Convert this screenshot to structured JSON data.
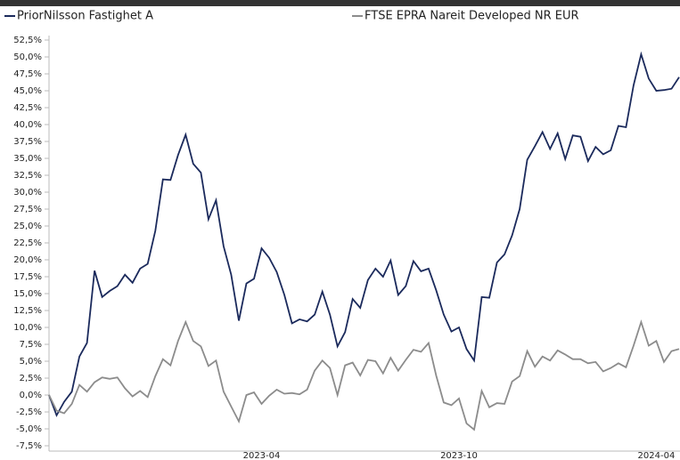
{
  "chart_data": {
    "type": "line",
    "categories": [
      null,
      null,
      null,
      null,
      null,
      null,
      null,
      null,
      null,
      null,
      null,
      null,
      null,
      null,
      null,
      null,
      null,
      null,
      null,
      null,
      null,
      null,
      null,
      null,
      null,
      null,
      null,
      null,
      "2023-04",
      null,
      null,
      null,
      null,
      null,
      null,
      null,
      null,
      null,
      null,
      null,
      null,
      null,
      null,
      null,
      null,
      null,
      null,
      null,
      null,
      null,
      null,
      null,
      null,
      null,
      "2023-10",
      null,
      null,
      null,
      null,
      null,
      null,
      null,
      null,
      null,
      null,
      null,
      null,
      null,
      null,
      null,
      null,
      null,
      null,
      null,
      null,
      null,
      null,
      null,
      null,
      null,
      "2024-04",
      null,
      null,
      null
    ],
    "series": [
      {
        "name": "PriorNilsson Fastighet A",
        "color": "#1b2a5c",
        "values": [
          0.0,
          -3.0,
          -1.0,
          0.5,
          5.7,
          7.7,
          18.4,
          14.5,
          15.4,
          16.1,
          17.8,
          16.6,
          18.7,
          19.4,
          24.3,
          31.9,
          31.8,
          35.5,
          38.5,
          34.2,
          32.9,
          26.0,
          28.8,
          22.0,
          17.8,
          11.0,
          16.5,
          17.2,
          21.7,
          20.3,
          18.2,
          14.8,
          10.6,
          11.2,
          10.9,
          11.9,
          15.3,
          11.9,
          7.2,
          9.3,
          14.2,
          12.9,
          17.0,
          18.7,
          17.5,
          19.9,
          14.8,
          16.1,
          19.8,
          18.3,
          18.7,
          15.5,
          11.9,
          9.4,
          10.0,
          6.8,
          5.1,
          14.5,
          14.4,
          19.6,
          20.8,
          23.6,
          27.5,
          34.8,
          36.8,
          38.9,
          36.4,
          38.7,
          34.9,
          38.4,
          38.2,
          34.6,
          36.7,
          35.6,
          36.2,
          39.8,
          39.6,
          45.8,
          50.4,
          46.8,
          45.0,
          45.1,
          45.3,
          47.0
        ]
      },
      {
        "name": "FTSE EPRA Nareit Developed NR EUR",
        "color": "#8c8c8c",
        "values": [
          0.0,
          -2.3,
          -2.7,
          -1.3,
          1.5,
          0.5,
          1.9,
          2.6,
          2.4,
          2.6,
          1.0,
          -0.2,
          0.6,
          -0.3,
          2.8,
          5.3,
          4.4,
          8.0,
          10.8,
          8.0,
          7.2,
          4.3,
          5.1,
          0.5,
          -1.7,
          -3.9,
          0.0,
          0.4,
          -1.3,
          -0.1,
          0.8,
          0.2,
          0.3,
          0.1,
          0.8,
          3.6,
          5.1,
          4.0,
          0.0,
          4.4,
          4.8,
          2.9,
          5.2,
          5.0,
          3.2,
          5.5,
          3.6,
          5.2,
          6.7,
          6.4,
          7.7,
          2.9,
          -1.1,
          -1.5,
          -0.5,
          -4.2,
          -5.1,
          0.6,
          -1.8,
          -1.2,
          -1.3,
          2.0,
          2.8,
          6.5,
          4.2,
          5.7,
          5.1,
          6.6,
          6.0,
          5.3,
          5.3,
          4.7,
          4.9,
          3.5,
          4.0,
          4.7,
          4.1,
          7.3,
          10.8,
          7.3,
          8.0,
          4.9,
          6.5,
          6.8
        ]
      }
    ],
    "ylim": [
      -7.5,
      52.5
    ],
    "yticks": [
      {
        "value": -7.5,
        "label": "-7,5%"
      },
      {
        "value": -5,
        "label": "-5,0%"
      },
      {
        "value": -2.5,
        "label": "-2,5%"
      },
      {
        "value": 0,
        "label": "0,0%"
      },
      {
        "value": 2.5,
        "label": "2,5%"
      },
      {
        "value": 5,
        "label": "5,0%"
      },
      {
        "value": 7.5,
        "label": "7,5%"
      },
      {
        "value": 10,
        "label": "10,0%"
      },
      {
        "value": 12.5,
        "label": "12,5%"
      },
      {
        "value": 15,
        "label": "15,0%"
      },
      {
        "value": 17.5,
        "label": "17,5%"
      },
      {
        "value": 20,
        "label": "20,0%"
      },
      {
        "value": 22.5,
        "label": "22,5%"
      },
      {
        "value": 25,
        "label": "25,0%"
      },
      {
        "value": 27.5,
        "label": "27,5%"
      },
      {
        "value": 30,
        "label": "30,0%"
      },
      {
        "value": 32.5,
        "label": "32,5%"
      },
      {
        "value": 35,
        "label": "35,0%"
      },
      {
        "value": 37.5,
        "label": "37,5%"
      },
      {
        "value": 40,
        "label": "40,0%"
      },
      {
        "value": 42.5,
        "label": "42,5%"
      },
      {
        "value": 45,
        "label": "45,0%"
      },
      {
        "value": 47.5,
        "label": "47,5%"
      },
      {
        "value": 50,
        "label": "50,0%"
      },
      {
        "value": 52.5,
        "label": "52,5%"
      }
    ],
    "grid": false
  }
}
